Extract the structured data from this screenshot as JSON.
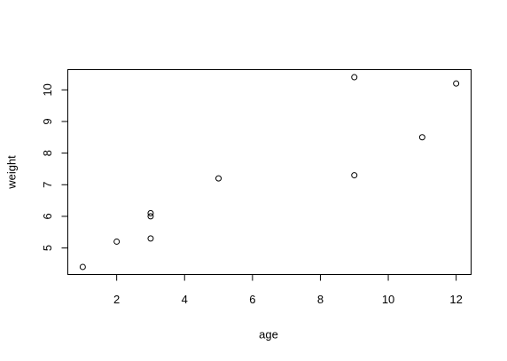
{
  "chart_data": {
    "type": "scatter",
    "x_label": "age",
    "y_label": "weight",
    "series": [
      {
        "x": [
          1,
          3,
          5,
          2,
          11,
          9,
          3,
          9,
          12,
          3
        ],
        "values": [
          4.4,
          5.3,
          7.2,
          5.2,
          8.5,
          7.3,
          6.0,
          10.4,
          10.2,
          6.1
        ],
        "color": "#000000"
      }
    ],
    "xlim": [
      0.56,
      12.44
    ],
    "xticks": [
      2,
      4,
      6,
      8,
      10,
      12
    ],
    "ylim": [
      4.16,
      10.64
    ],
    "yticks": [
      5,
      6,
      7,
      8,
      9,
      10
    ],
    "grid": false
  }
}
